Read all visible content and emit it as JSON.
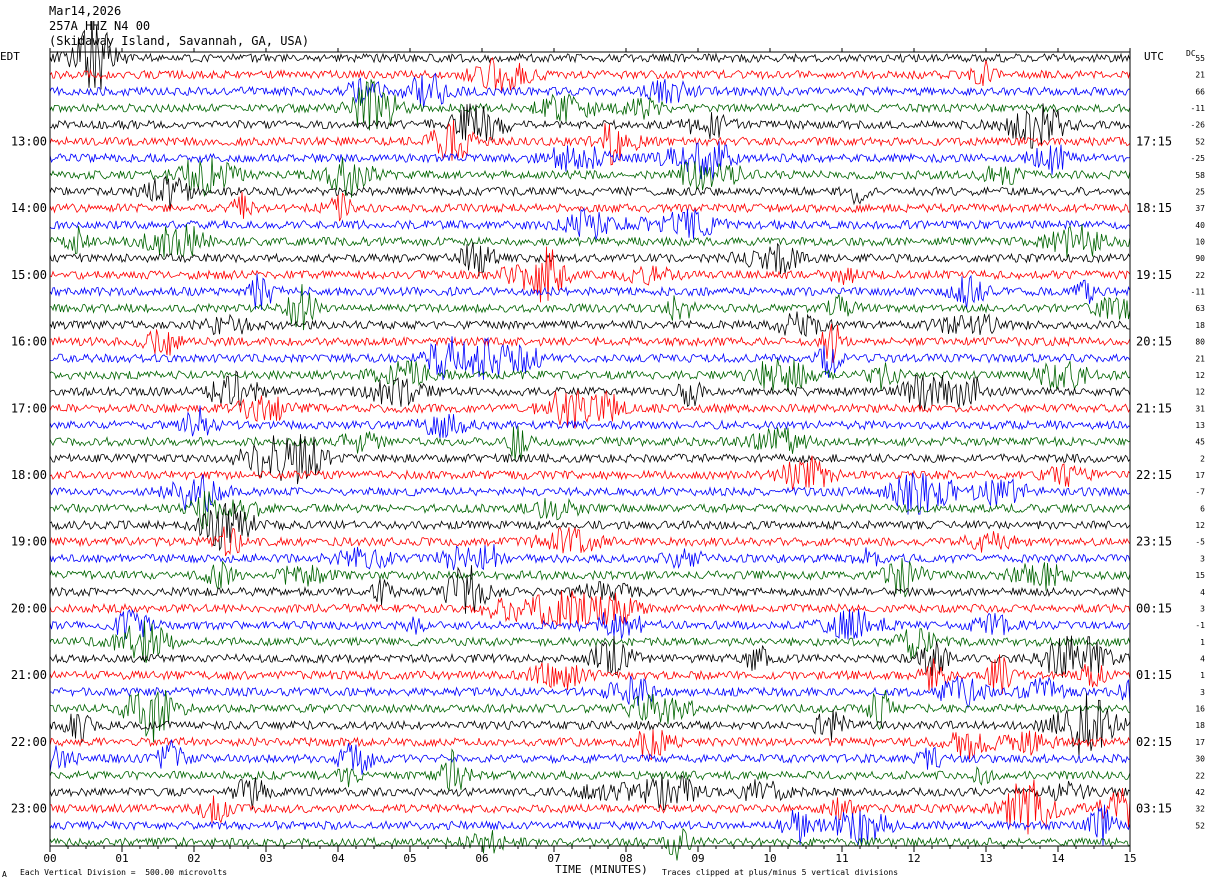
{
  "header": {
    "date": "Mar14,2026",
    "station": "257A HHZ N4 00",
    "location": "(Skidaway Island, Savannah, GA, USA)"
  },
  "corner_left": "EDT",
  "corner_right": "UTC",
  "dc_label": "DC",
  "footer": {
    "scale": "Each Vertical Division =  500.00 microvolts",
    "clip": "Traces clipped at plus/minus 5 vertical divisions",
    "mark": "A"
  },
  "colors": [
    "#000000",
    "#ff0000",
    "#0000ff",
    "#006400"
  ],
  "chart_data": {
    "type": "line",
    "xlabel": "TIME (MINUTES)",
    "xticks": [
      "00",
      "01",
      "02",
      "03",
      "04",
      "05",
      "06",
      "07",
      "08",
      "09",
      "10",
      "11",
      "12",
      "13",
      "14",
      "15"
    ],
    "xlim": [
      0,
      15
    ],
    "left_hour_labels": [
      "13:00",
      "14:00",
      "15:00",
      "16:00",
      "17:00",
      "18:00",
      "19:00",
      "20:00",
      "21:00",
      "22:00",
      "23:00"
    ],
    "right_hour_labels": [
      "17:15",
      "18:15",
      "19:15",
      "20:15",
      "21:15",
      "22:15",
      "23:15",
      "00:15",
      "01:15",
      "02:15",
      "03:15"
    ],
    "dc_offsets": [
      "55",
      "21",
      "66",
      "-11",
      "-26",
      "52",
      "-25",
      "58",
      "25",
      "37",
      "40",
      "10",
      "90",
      "22",
      "-11",
      "63",
      "18",
      "80",
      "21",
      "12",
      "12",
      "31",
      "13",
      "45",
      "2",
      "17",
      "-7",
      "6",
      "12",
      "-5",
      "3",
      "15",
      "4",
      "3",
      "-1",
      "1",
      "4",
      "1",
      "3",
      "16",
      "18",
      "17",
      "30",
      "22",
      "42",
      "32",
      "52"
    ],
    "trace_count": 48,
    "first_labeled_trace": 5,
    "traces_per_hour": 4
  }
}
